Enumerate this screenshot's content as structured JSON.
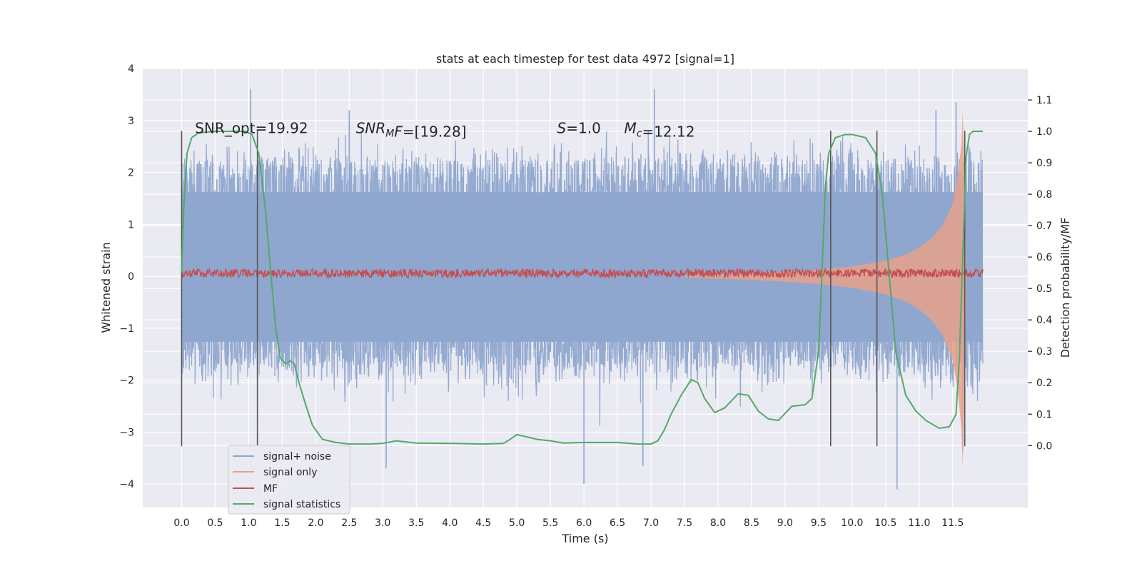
{
  "chart_data": {
    "type": "line",
    "title": "stats at each timestep for test data 4972 [signal=1]",
    "xlabel": "Time (s)",
    "ylabel": "Whitened strain",
    "y2label": "Detection probability/MF",
    "xlim": [
      -0.58,
      12.62
    ],
    "ylim": [
      -4.45,
      4.0
    ],
    "y2lim": [
      -0.197,
      1.2
    ],
    "x_ticks": [
      0.0,
      0.5,
      1.0,
      1.5,
      2.0,
      2.5,
      3.0,
      3.5,
      4.0,
      4.5,
      5.0,
      5.5,
      6.0,
      6.5,
      7.0,
      7.5,
      8.0,
      8.5,
      9.0,
      9.5,
      10.0,
      10.5,
      11.0,
      11.5
    ],
    "x_tick_labels": [
      "0.0",
      "0.5",
      "1.0",
      "1.5",
      "2.0",
      "2.5",
      "3.0",
      "3.5",
      "4.0",
      "4.5",
      "5.0",
      "5.5",
      "6.0",
      "6.5",
      "7.0",
      "7.5",
      "8.0",
      "8.5",
      "9.0",
      "9.5",
      "10.0",
      "10.5",
      "11.0",
      "11.5"
    ],
    "y_ticks": [
      -4,
      -3,
      -2,
      -1,
      0,
      1,
      2,
      3,
      4
    ],
    "y_tick_labels": [
      "−4",
      "−3",
      "−2",
      "−1",
      "0",
      "1",
      "2",
      "3",
      "4"
    ],
    "y2_ticks": [
      0.0,
      0.1,
      0.2,
      0.3,
      0.4,
      0.5,
      0.6,
      0.7,
      0.8,
      0.9,
      1.0,
      1.1
    ],
    "y2_tick_labels": [
      "0.0",
      "0.1",
      "0.2",
      "0.3",
      "0.4",
      "0.5",
      "0.6",
      "0.7",
      "0.8",
      "0.9",
      "1.0",
      "1.1"
    ],
    "grid": true,
    "legend_position": "lower-left",
    "annotations": [
      {
        "parts": [
          {
            "t": "SNR_opt=19.92",
            "style": "normal"
          }
        ],
        "x": 0.2,
        "y": 2.85
      },
      {
        "parts": [
          {
            "t": "SNR",
            "style": "italic"
          },
          {
            "t": "M",
            "style": "sub-italic"
          },
          {
            "t": "F=[19.28]",
            "style": "italic-F"
          }
        ],
        "x": 2.6,
        "y": 2.85
      },
      {
        "parts": [
          {
            "t": "S",
            "style": "italic"
          },
          {
            "t": "=1.0",
            "style": "normal"
          }
        ],
        "x": 5.6,
        "y": 2.85
      },
      {
        "parts": [
          {
            "t": "M",
            "style": "italic"
          },
          {
            "t": "c",
            "style": "sub-italic"
          },
          {
            "t": "=12.12",
            "style": "normal"
          }
        ],
        "x": 6.6,
        "y": 2.85
      }
    ],
    "series": [
      {
        "name": "signal+ noise",
        "color": "#8fa6cf",
        "axis": "left",
        "x_range": [
          0.0,
          11.95
        ],
        "envelope_upper": 2.25,
        "envelope_lower": -1.75,
        "peaks": [
          [
            1.03,
            3.6
          ],
          [
            7.05,
            3.6
          ],
          [
            2.5,
            3.2
          ],
          [
            11.55,
            3.35
          ],
          [
            11.25,
            3.2
          ],
          [
            6.0,
            -4.0
          ],
          [
            10.67,
            -4.1
          ],
          [
            3.05,
            -3.7
          ],
          [
            6.88,
            -3.65
          ],
          [
            11.65,
            -3.35
          ]
        ]
      },
      {
        "name": "signal only",
        "color": "#e8a18a",
        "axis": "left",
        "x": [
          7.5,
          8.0,
          8.5,
          9.0,
          9.5,
          10.0,
          10.5,
          10.8,
          11.0,
          11.2,
          11.35,
          11.5,
          11.58,
          11.63,
          11.65,
          11.68,
          11.7
        ],
        "amplitude": [
          0.02,
          0.04,
          0.06,
          0.09,
          0.13,
          0.19,
          0.3,
          0.42,
          0.55,
          0.75,
          0.98,
          1.4,
          1.95,
          2.55,
          3.2,
          1.5,
          0.3
        ]
      },
      {
        "name": "MF",
        "color": "#c44e52",
        "axis": "left",
        "x_range": [
          0.0,
          11.95
        ],
        "center": 0.06,
        "jitter": 0.08
      },
      {
        "name": "signal statistics",
        "color": "#55a868",
        "axis": "right",
        "x": [
          0.0,
          0.03,
          0.08,
          0.15,
          0.25,
          0.5,
          0.8,
          0.95,
          1.05,
          1.15,
          1.25,
          1.33,
          1.4,
          1.47,
          1.55,
          1.62,
          1.68,
          1.75,
          1.85,
          1.95,
          2.1,
          2.3,
          2.5,
          2.8,
          3.0,
          3.2,
          3.5,
          4.0,
          4.5,
          4.8,
          4.9,
          5.0,
          5.1,
          5.3,
          5.5,
          5.7,
          6.0,
          6.5,
          6.8,
          7.0,
          7.1,
          7.2,
          7.3,
          7.45,
          7.6,
          7.7,
          7.8,
          7.95,
          8.1,
          8.3,
          8.45,
          8.6,
          8.75,
          8.9,
          9.1,
          9.3,
          9.4,
          9.5,
          9.55,
          9.6,
          9.65,
          9.75,
          9.9,
          10.0,
          10.2,
          10.35,
          10.45,
          10.55,
          10.65,
          10.8,
          10.95,
          11.1,
          11.3,
          11.45,
          11.55,
          11.6,
          11.65,
          11.7,
          11.75,
          11.8,
          11.95
        ],
        "y": [
          0.55,
          0.75,
          0.93,
          0.98,
          0.995,
          1.0,
          1.0,
          1.0,
          0.99,
          0.93,
          0.75,
          0.55,
          0.38,
          0.28,
          0.26,
          0.27,
          0.26,
          0.2,
          0.13,
          0.065,
          0.02,
          0.01,
          0.005,
          0.005,
          0.007,
          0.015,
          0.008,
          0.007,
          0.005,
          0.007,
          0.02,
          0.035,
          0.03,
          0.02,
          0.015,
          0.008,
          0.01,
          0.01,
          0.005,
          0.005,
          0.015,
          0.05,
          0.1,
          0.16,
          0.21,
          0.2,
          0.15,
          0.105,
          0.12,
          0.165,
          0.16,
          0.11,
          0.085,
          0.08,
          0.125,
          0.13,
          0.15,
          0.3,
          0.55,
          0.82,
          0.93,
          0.98,
          0.99,
          0.99,
          0.98,
          0.93,
          0.8,
          0.55,
          0.3,
          0.16,
          0.11,
          0.08,
          0.055,
          0.06,
          0.1,
          0.28,
          0.6,
          0.92,
          0.99,
          1.0,
          1.0
        ]
      }
    ],
    "vertical_lines": [
      {
        "x": 0.0,
        "y_top": 2.8,
        "y_bottom": -3.27
      },
      {
        "x": 1.13,
        "y_top": 2.8,
        "y_bottom": -3.27
      },
      {
        "x": 9.68,
        "y_top": 2.8,
        "y_bottom": -3.27
      },
      {
        "x": 10.37,
        "y_top": 2.8,
        "y_bottom": -3.27
      },
      {
        "x": 11.68,
        "y_top": 2.8,
        "y_bottom": -3.27
      }
    ]
  }
}
